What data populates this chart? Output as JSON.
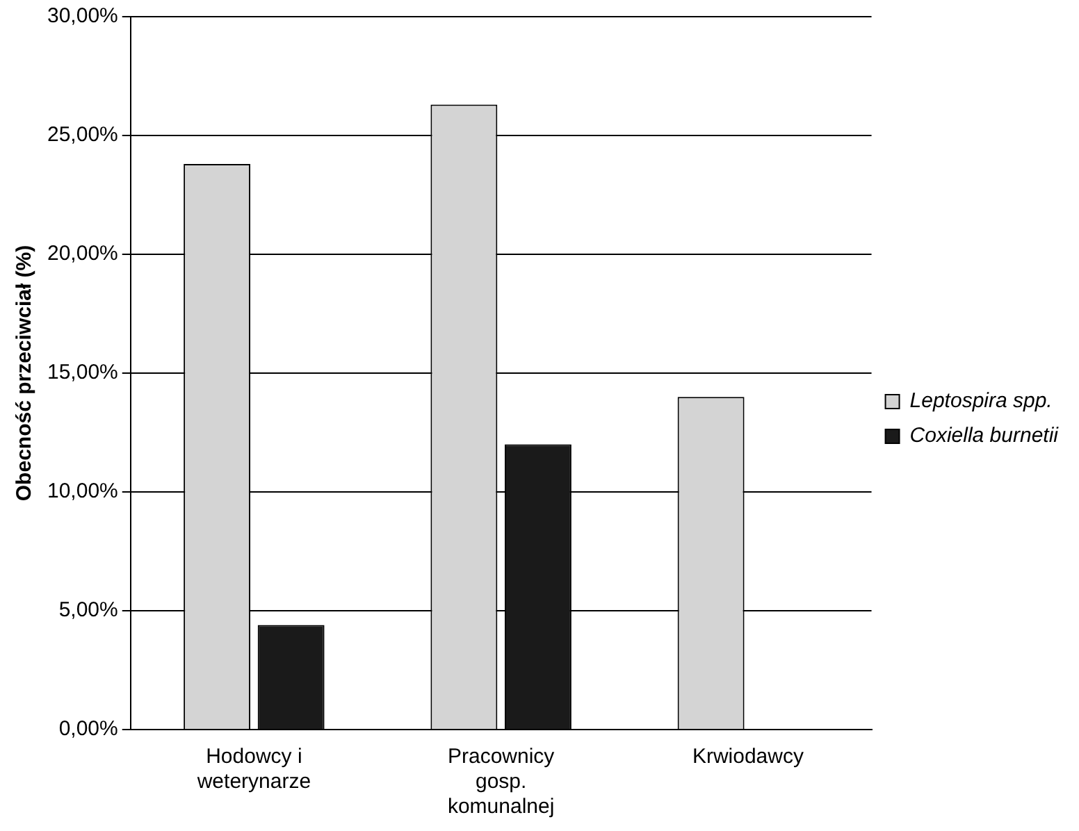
{
  "chart_data": {
    "type": "bar",
    "ylabel": "Obecność przeciwciał (%)",
    "categories": [
      "Hodowcy i weterynarze",
      "Pracownicy gosp. komunalnej",
      "Krwiodawcy"
    ],
    "series": [
      {
        "name": "Leptospira spp.",
        "color": "#d4d4d4",
        "values": [
          23.8,
          26.3,
          14.0
        ]
      },
      {
        "name": "Coxiella burnetii",
        "color": "#1a1a1a",
        "values": [
          4.4,
          12.0,
          null
        ]
      }
    ],
    "ylim": [
      0,
      30
    ],
    "yticks": [
      {
        "value": 0,
        "label": "0,00%"
      },
      {
        "value": 5,
        "label": "5,00%"
      },
      {
        "value": 10,
        "label": "10,00%"
      },
      {
        "value": 15,
        "label": "15,00%"
      },
      {
        "value": 20,
        "label": "20,00%"
      },
      {
        "value": 25,
        "label": "25,00%"
      },
      {
        "value": 30,
        "label": "30,00%"
      }
    ],
    "grid": "y",
    "legend": "right"
  }
}
